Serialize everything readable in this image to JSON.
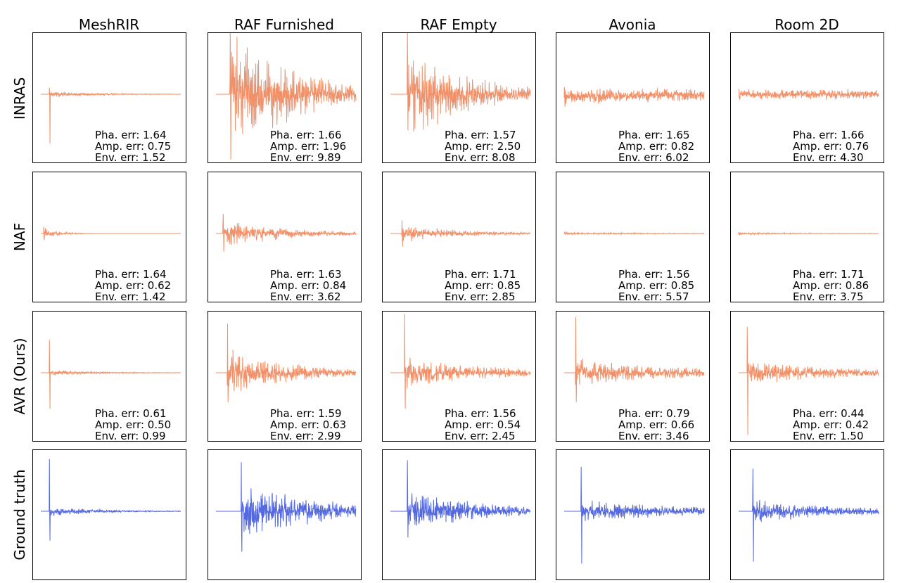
{
  "figure": {
    "columns": [
      "MeshRIR",
      "RAF Furnished",
      "RAF Empty",
      "Avonia",
      "Room 2D"
    ],
    "rows": [
      "INRAS",
      "NAF",
      "AVR (Ours)",
      "Ground truth"
    ],
    "metric_labels": [
      "Pha. err:",
      "Amp. err:",
      "Env. err:"
    ],
    "colors": {
      "predicted": "#F0916A",
      "ground_truth": "#5468E0",
      "frame": "#000000",
      "text": "#000000"
    }
  },
  "chart_data": {
    "type": "line",
    "title": "",
    "xlabel": "",
    "ylabel": "",
    "grid": false,
    "ylim": [
      -1,
      1
    ],
    "x_range": [
      0,
      1
    ],
    "axis_ticks": "none",
    "columns": [
      "MeshRIR",
      "RAF Furnished",
      "RAF Empty",
      "Avonia",
      "Room 2D"
    ],
    "rows": [
      "INRAS",
      "NAF",
      "AVR (Ours)",
      "Ground truth"
    ],
    "errors": {
      "INRAS": {
        "pha": [
          1.64,
          1.66,
          1.57,
          1.65,
          1.66
        ],
        "amp": [
          0.75,
          1.96,
          2.5,
          0.82,
          0.76
        ],
        "env": [
          1.52,
          9.89,
          8.08,
          6.02,
          4.3
        ]
      },
      "NAF": {
        "pha": [
          1.64,
          1.63,
          1.71,
          1.56,
          1.71
        ],
        "amp": [
          0.62,
          0.84,
          0.85,
          0.85,
          0.86
        ],
        "env": [
          1.42,
          3.62,
          2.85,
          5.57,
          3.75
        ]
      },
      "AVR (Ours)": {
        "pha": [
          0.61,
          1.59,
          1.56,
          0.79,
          0.44
        ],
        "amp": [
          0.5,
          0.63,
          0.54,
          0.66,
          0.42
        ],
        "env": [
          0.99,
          2.99,
          2.45,
          3.46,
          1.5
        ]
      }
    },
    "waveforms": {
      "INRAS": [
        {
          "onset": 0.06,
          "peak_up": 0.1,
          "peak_down": -0.75,
          "decay": 6,
          "noise": 0.05,
          "noise_decay": 3,
          "offset": 0.0,
          "seed": 11
        },
        {
          "onset": 0.1,
          "peak_up": 1.0,
          "peak_down": -1.0,
          "decay": 1.8,
          "noise": 0.9,
          "noise_decay": 2.0,
          "offset": 0.0,
          "seed": 12
        },
        {
          "onset": 0.12,
          "peak_up": 1.0,
          "peak_down": -0.55,
          "decay": 2.0,
          "noise": 0.7,
          "noise_decay": 2.2,
          "offset": 0.0,
          "seed": 13
        },
        {
          "onset": 0.0,
          "peak_up": 0.15,
          "peak_down": -0.15,
          "decay": 0.4,
          "noise": 0.12,
          "noise_decay": 0.2,
          "offset": 0.05,
          "seed": 14
        },
        {
          "onset": 0.0,
          "peak_up": 0.08,
          "peak_down": -0.08,
          "decay": 0.2,
          "noise": 0.08,
          "noise_decay": 0.1,
          "offset": 0.0,
          "seed": 15
        }
      ],
      "NAF": [
        {
          "onset": 0.02,
          "peak_up": 0.1,
          "peak_down": -0.1,
          "decay": 9,
          "noise": 0.09,
          "noise_decay": 9,
          "offset": 0.0,
          "seed": 21
        },
        {
          "onset": 0.05,
          "peak_up": 0.3,
          "peak_down": -0.28,
          "decay": 2.8,
          "noise": 0.22,
          "noise_decay": 2.2,
          "offset": 0.0,
          "seed": 22
        },
        {
          "onset": 0.08,
          "peak_up": 0.2,
          "peak_down": -0.2,
          "decay": 3.0,
          "noise": 0.14,
          "noise_decay": 2.4,
          "offset": 0.0,
          "seed": 23
        },
        {
          "onset": 0.0,
          "peak_up": 0.02,
          "peak_down": -0.02,
          "decay": 2.0,
          "noise": 0.02,
          "noise_decay": 1.5,
          "offset": 0.0,
          "seed": 24
        },
        {
          "onset": 0.0,
          "peak_up": 0.02,
          "peak_down": -0.02,
          "decay": 3.0,
          "noise": 0.02,
          "noise_decay": 2.0,
          "offset": 0.0,
          "seed": 25
        }
      ],
      "AVR (Ours)": [
        {
          "onset": 0.06,
          "peak_up": 0.5,
          "peak_down": -0.55,
          "decay": 7,
          "noise": 0.05,
          "noise_decay": 3,
          "offset": 0.0,
          "seed": 31
        },
        {
          "onset": 0.08,
          "peak_up": 0.75,
          "peak_down": -0.45,
          "decay": 2.5,
          "noise": 0.35,
          "noise_decay": 2.0,
          "offset": 0.0,
          "seed": 32
        },
        {
          "onset": 0.1,
          "peak_up": 0.9,
          "peak_down": -0.55,
          "decay": 2.5,
          "noise": 0.25,
          "noise_decay": 1.6,
          "offset": 0.0,
          "seed": 33
        },
        {
          "onset": 0.08,
          "peak_up": 0.85,
          "peak_down": -0.45,
          "decay": 3.0,
          "noise": 0.22,
          "noise_decay": 1.2,
          "offset": 0.0,
          "seed": 34
        },
        {
          "onset": 0.06,
          "peak_up": 0.7,
          "peak_down": -0.95,
          "decay": 3.0,
          "noise": 0.22,
          "noise_decay": 1.5,
          "offset": 0.0,
          "seed": 35
        }
      ],
      "Ground truth": [
        {
          "onset": 0.06,
          "peak_up": 0.8,
          "peak_down": -0.45,
          "decay": 7,
          "noise": 0.08,
          "noise_decay": 3,
          "offset": 0.0,
          "seed": 41
        },
        {
          "onset": 0.18,
          "peak_up": 0.75,
          "peak_down": -0.62,
          "decay": 2.0,
          "noise": 0.45,
          "noise_decay": 1.8,
          "offset": 0.0,
          "seed": 42
        },
        {
          "onset": 0.12,
          "peak_up": 0.78,
          "peak_down": -0.4,
          "decay": 2.5,
          "noise": 0.3,
          "noise_decay": 1.5,
          "offset": 0.0,
          "seed": 43
        },
        {
          "onset": 0.12,
          "peak_up": 0.68,
          "peak_down": -0.8,
          "decay": 3.0,
          "noise": 0.18,
          "noise_decay": 1.2,
          "offset": 0.0,
          "seed": 44
        },
        {
          "onset": 0.1,
          "peak_up": 0.65,
          "peak_down": -0.77,
          "decay": 3.0,
          "noise": 0.18,
          "noise_decay": 1.4,
          "offset": 0.0,
          "seed": 45
        }
      ]
    }
  }
}
